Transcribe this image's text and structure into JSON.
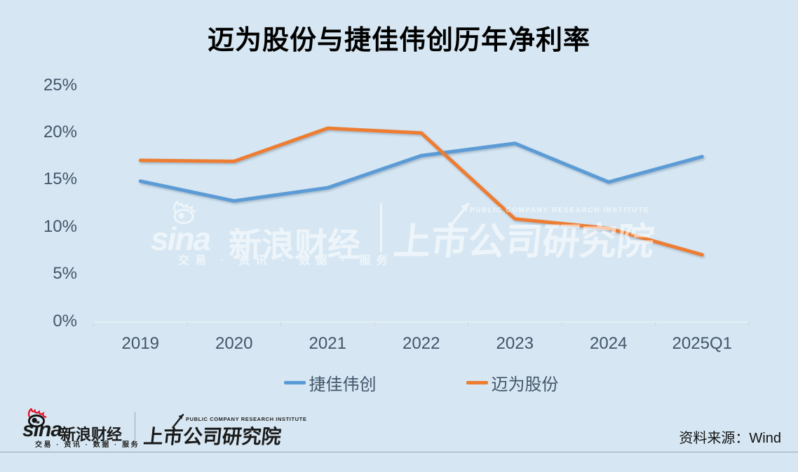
{
  "title": "迈为股份与捷佳伟创历年净利率",
  "chart_data": {
    "type": "line",
    "title": "迈为股份与捷佳伟创历年净利率",
    "categories": [
      "2019",
      "2020",
      "2021",
      "2022",
      "2023",
      "2024",
      "2025Q1"
    ],
    "series": [
      {
        "name": "捷佳伟创",
        "color": "#5B9BD5",
        "values": [
          14.9,
          12.8,
          14.2,
          17.6,
          18.9,
          14.8,
          17.5
        ]
      },
      {
        "name": "迈为股份",
        "color": "#ED7D31",
        "values": [
          17.1,
          17.0,
          20.5,
          20.0,
          10.9,
          9.9,
          7.1
        ]
      }
    ],
    "xlabel": "",
    "ylabel": "",
    "ylim": [
      0,
      25
    ],
    "yticks": [
      0,
      5,
      10,
      15,
      20,
      25
    ],
    "ytick_labels": [
      "0%",
      "5%",
      "10%",
      "15%",
      "20%",
      "25%"
    ],
    "grid": false,
    "legend_position": "bottom"
  },
  "watermark": {
    "sina_word": "sina",
    "sina_name": "新浪财经",
    "sina_tagline": "交易 · 资讯 · 数据 · 服务",
    "pcri_en": "PUBLIC COMPANY RESEARCH INSTITUTE",
    "pcri_name": "上市公司研究院"
  },
  "footer": {
    "sina_word": "sina",
    "sina_name": "新浪财经",
    "sina_tagline": "交易 · 资讯 · 数据 · 服务",
    "pcri_en": "PUBLIC COMPANY RESEARCH INSTITUTE",
    "pcri_name": "上市公司研究院",
    "source": "资料来源：Wind"
  },
  "colors": {
    "background": "#D6E7F3",
    "series_blue": "#5B9BD5",
    "series_orange": "#ED7D31",
    "axis_label": "#44546A",
    "axis_line": "#E8F1F8",
    "tick_mark": "#CBD9E6",
    "footer_line": "#9AA4AC",
    "sina_red": "#E6162D"
  }
}
